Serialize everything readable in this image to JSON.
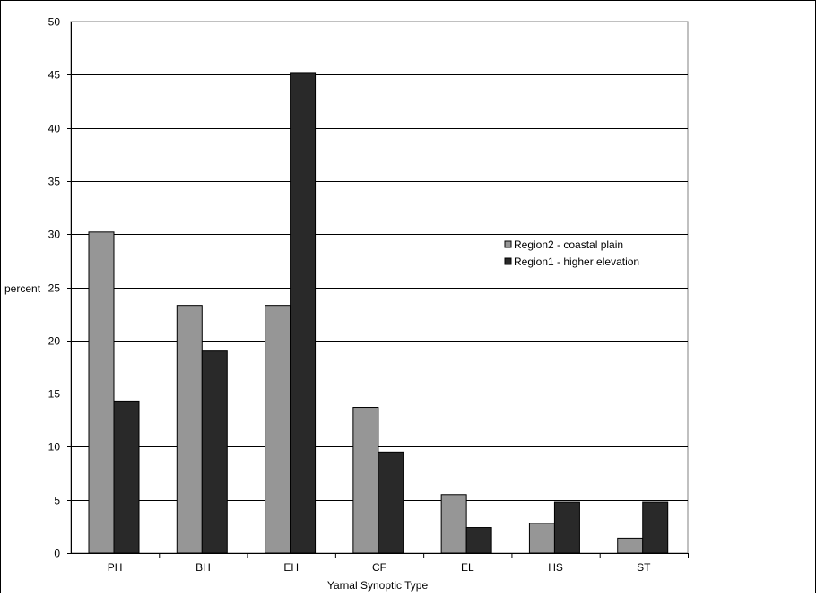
{
  "chart_data": {
    "type": "bar",
    "title": "",
    "xlabel": "Yarnal Synoptic Type",
    "ylabel": "percent",
    "categories": [
      "PH",
      "BH",
      "EH",
      "CF",
      "EL",
      "HS",
      "ST"
    ],
    "ylim": [
      0,
      50
    ],
    "yticks": [
      0,
      5,
      10,
      15,
      20,
      25,
      30,
      35,
      40,
      45,
      50
    ],
    "grid": true,
    "legend_position": "right",
    "series": [
      {
        "name": "Region2 - coastal plain",
        "color": "#969696",
        "values": [
          30.2,
          23.3,
          23.3,
          13.7,
          5.5,
          2.8,
          1.4
        ]
      },
      {
        "name": "Region1 - higher elevation",
        "color": "#292929",
        "values": [
          14.3,
          19.0,
          45.2,
          9.5,
          2.4,
          4.8,
          4.8
        ]
      }
    ]
  }
}
